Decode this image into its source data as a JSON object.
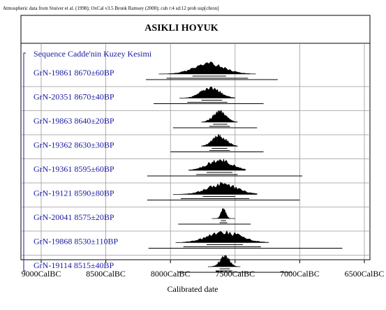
{
  "header_note": "Atmospheric data from Stuiver et al. (1998); OxCal v3.5 Bronk Ramsey (2000); cub r:4 sd:12 prob usp[chron]",
  "chart_data": {
    "type": "multiple-plot",
    "title": "ASIKLI HOYUK",
    "xlabel": "Calibrated date",
    "x_axis": {
      "ticks": [
        -9000,
        -8500,
        -8000,
        -7500,
        -7000,
        -6500
      ],
      "tick_labels": [
        "9000CalBC",
        "8500CalBC",
        "8000CalBC",
        "7500CalBC",
        "7000CalBC",
        "6500CalBC"
      ],
      "range": [
        -9000,
        -6500
      ],
      "grid": true
    },
    "sequence_label": "Sequence Cadde'nin Kuzey Kesimi",
    "samples": [
      {
        "label": "GrN-19861  8670±60BP",
        "peak": -7700,
        "span68": [
          -7830,
          -7570
        ],
        "span95": [
          -8030,
          -7400
        ],
        "range": [
          -8190,
          -7170
        ]
      },
      {
        "label": "GrN-20351  8670±40BP",
        "peak": -7690,
        "span68": [
          -7760,
          -7600
        ],
        "span95": [
          -7870,
          -7560
        ],
        "range": [
          -8130,
          -7280
        ]
      },
      {
        "label": "GrN-19863  8640±20BP",
        "peak": -7620,
        "span68": [
          -7670,
          -7560
        ],
        "span95": [
          -7700,
          -7540
        ],
        "range": [
          -7980,
          -7330
        ]
      },
      {
        "label": "GrN-19362  8630±30BP",
        "peak": -7620,
        "span68": [
          -7680,
          -7560
        ],
        "span95": [
          -7700,
          -7540
        ],
        "range": [
          -8000,
          -7280
        ]
      },
      {
        "label": "GrN-19361  8595±60BP",
        "peak": -7620,
        "span68": [
          -7720,
          -7520
        ],
        "span95": [
          -7800,
          -7480
        ],
        "range": [
          -8180,
          -6980
        ]
      },
      {
        "label": "GrN-19121  8590±80BP",
        "peak": -7600,
        "span68": [
          -7750,
          -7500
        ],
        "span95": [
          -7920,
          -7390
        ],
        "range": [
          -8180,
          -7000
        ]
      },
      {
        "label": "GrN-20041  8575±20BP",
        "peak": -7590,
        "span68": [
          -7610,
          -7570
        ],
        "span95": [
          -7620,
          -7560
        ],
        "range": [
          -7940,
          -7380
        ]
      },
      {
        "label": "GrN-19868  8530±110BP",
        "peak": -7580,
        "span68": [
          -7720,
          -7440
        ],
        "span95": [
          -7900,
          -7300
        ],
        "range": [
          -8170,
          -6670
        ]
      },
      {
        "label": "GrN-19114  8515±40BP",
        "peak": -7580,
        "span68": [
          -7620,
          -7540
        ],
        "span95": [
          -7650,
          -7520
        ],
        "range": [
          -7940,
          -7060
        ]
      }
    ]
  }
}
